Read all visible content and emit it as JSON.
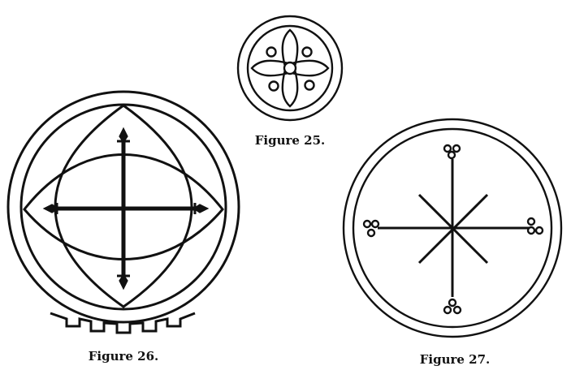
{
  "figures": [
    {
      "id": "fig25",
      "caption": "Figure 25."
    },
    {
      "id": "fig26",
      "caption": "Figure 26."
    },
    {
      "id": "fig27",
      "caption": "Figure 27."
    }
  ],
  "ink_color": "#111111",
  "paper_color": "#ffffff"
}
